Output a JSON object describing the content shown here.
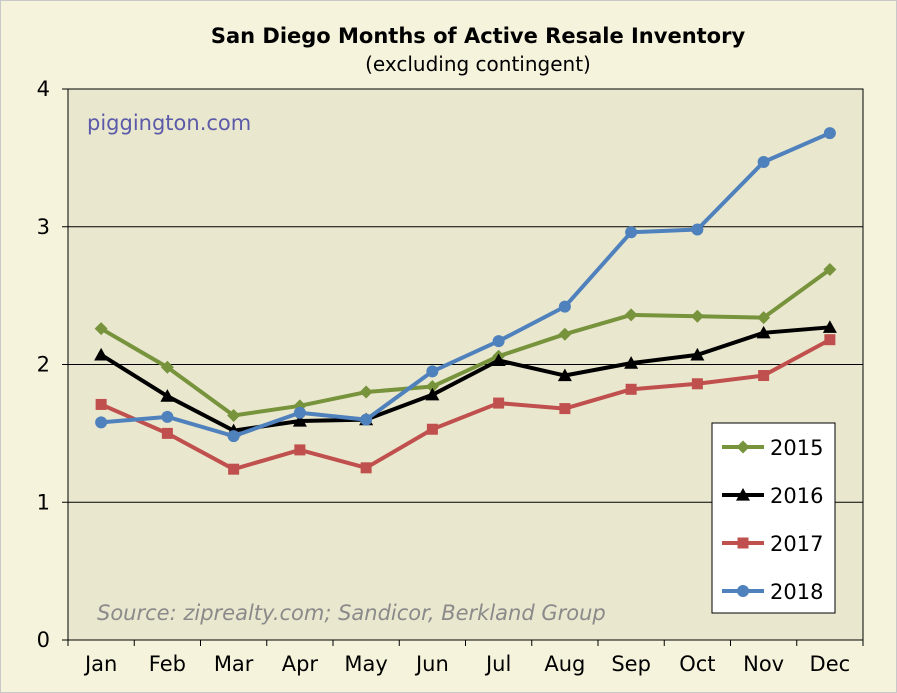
{
  "chart_data": {
    "type": "line",
    "title": "San Diego Months of Active Resale Inventory",
    "subtitle": "(excluding contingent)",
    "categories": [
      "Jan",
      "Feb",
      "Mar",
      "Apr",
      "May",
      "Jun",
      "Jul",
      "Aug",
      "Sep",
      "Oct",
      "Nov",
      "Dec"
    ],
    "ylim": [
      0,
      4
    ],
    "yticks": [
      0,
      1,
      2,
      3,
      4
    ],
    "grid": true,
    "legend_position": "bottom-right",
    "watermark": "piggington.com",
    "source": "Source: ziprealty.com; Sandicor, Berkland Group",
    "series": [
      {
        "name": "2015",
        "color": "#77933c",
        "marker": "diamond",
        "values": [
          2.26,
          1.98,
          1.63,
          1.7,
          1.8,
          1.84,
          2.06,
          2.22,
          2.36,
          2.35,
          2.34,
          2.69
        ]
      },
      {
        "name": "2016",
        "color": "#000000",
        "marker": "triangle",
        "values": [
          2.07,
          1.77,
          1.52,
          1.59,
          1.6,
          1.78,
          2.03,
          1.92,
          2.01,
          2.07,
          2.23,
          2.27
        ]
      },
      {
        "name": "2017",
        "color": "#c0504d",
        "marker": "square",
        "values": [
          1.71,
          1.5,
          1.24,
          1.38,
          1.25,
          1.53,
          1.72,
          1.68,
          1.82,
          1.86,
          1.92,
          2.18
        ]
      },
      {
        "name": "2018",
        "color": "#4f81bd",
        "marker": "circle",
        "values": [
          1.58,
          1.62,
          1.48,
          1.65,
          1.6,
          1.95,
          2.17,
          2.42,
          2.96,
          2.98,
          3.47,
          3.68
        ]
      }
    ]
  }
}
